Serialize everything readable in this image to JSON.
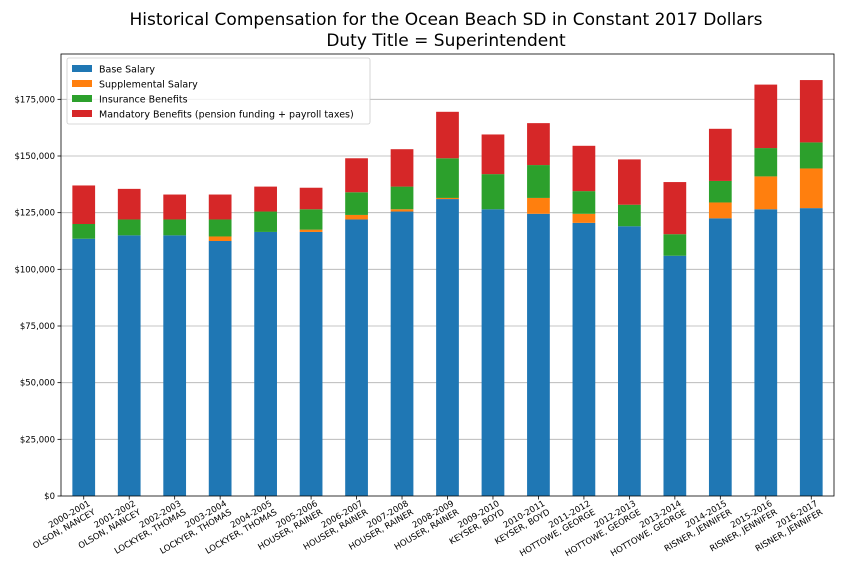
{
  "chart_data": {
    "type": "bar",
    "stacked": true,
    "title": "Historical Compensation for the Ocean Beach SD in Constant 2017 Dollars",
    "subtitle": "Duty Title = Superintendent",
    "xlabel": "",
    "ylabel": "",
    "ylim": [
      0,
      195000
    ],
    "yticks": [
      0,
      25000,
      50000,
      75000,
      100000,
      125000,
      150000,
      175000
    ],
    "ytick_labels": [
      "$0",
      "$25,000",
      "$50,000",
      "$75,000",
      "$100,000",
      "$125,000",
      "$150,000",
      "$175,000"
    ],
    "grid": "horizontal",
    "legend_position": "top-left",
    "categories": [
      {
        "year": "2000-2001",
        "name": "OLSON, NANCEY"
      },
      {
        "year": "2001-2002",
        "name": "OLSON, NANCEY"
      },
      {
        "year": "2002-2003",
        "name": "LOCKYER, THOMAS"
      },
      {
        "year": "2003-2004",
        "name": "LOCKYER, THOMAS"
      },
      {
        "year": "2004-2005",
        "name": "LOCKYER, THOMAS"
      },
      {
        "year": "2005-2006",
        "name": "HOUSER, RAINER"
      },
      {
        "year": "2006-2007",
        "name": "HOUSER, RAINER"
      },
      {
        "year": "2007-2008",
        "name": "HOUSER, RAINER"
      },
      {
        "year": "2008-2009",
        "name": "HOUSER, RAINER"
      },
      {
        "year": "2009-2010",
        "name": "KEYSER, BOYD"
      },
      {
        "year": "2010-2011",
        "name": "KEYSER, BOYD"
      },
      {
        "year": "2011-2012",
        "name": "HOTTOWE, GEORGE"
      },
      {
        "year": "2012-2013",
        "name": "HOTTOWE, GEORGE"
      },
      {
        "year": "2013-2014",
        "name": "HOTTOWE, GEORGE"
      },
      {
        "year": "2014-2015",
        "name": "RISNER, JENNIFER"
      },
      {
        "year": "2015-2016",
        "name": "RISNER, JENNIFER"
      },
      {
        "year": "2016-2017",
        "name": "RISNER, JENNIFER"
      }
    ],
    "series": [
      {
        "name": "Base Salary",
        "color": "#1f77b4",
        "values": [
          113500,
          115000,
          115000,
          112500,
          116500,
          116500,
          122000,
          125500,
          131000,
          126500,
          124500,
          120500,
          119000,
          106000,
          122500,
          126500,
          127000
        ]
      },
      {
        "name": "Supplemental Salary",
        "color": "#ff7f0e",
        "values": [
          0,
          0,
          0,
          2000,
          0,
          1000,
          2000,
          1000,
          500,
          0,
          7000,
          4000,
          0,
          0,
          7000,
          14500,
          17500
        ]
      },
      {
        "name": "Insurance Benefits",
        "color": "#2ca02c",
        "values": [
          6500,
          7000,
          7000,
          7500,
          9000,
          9000,
          10000,
          10000,
          17500,
          15500,
          14500,
          10000,
          9500,
          9500,
          9500,
          12500,
          11500
        ]
      },
      {
        "name": "Mandatory Benefits (pension funding + payroll taxes)",
        "color": "#d62728",
        "values": [
          17000,
          13500,
          11000,
          11000,
          11000,
          9500,
          15000,
          16500,
          20500,
          17500,
          18500,
          20000,
          20000,
          23000,
          23000,
          28000,
          27500
        ]
      }
    ]
  }
}
